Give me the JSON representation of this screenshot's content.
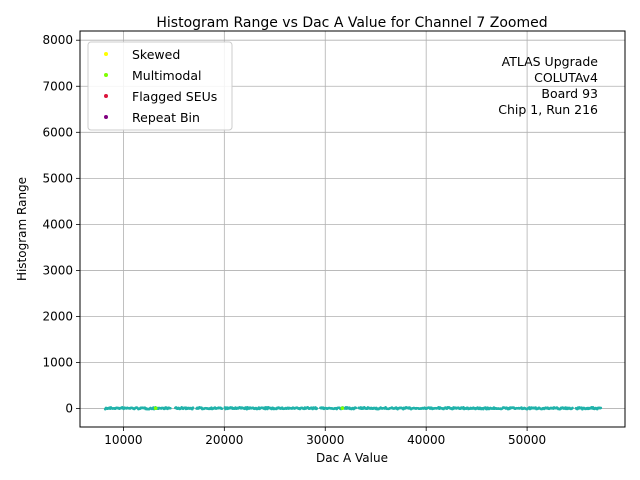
{
  "chart_data": {
    "type": "scatter",
    "title": "Histogram Range vs Dac A Value for Channel 7 Zoomed",
    "xlabel": "Dac A Value",
    "ylabel": "Histogram Range",
    "xlim": [
      5700,
      59700
    ],
    "ylim": [
      -400,
      8200
    ],
    "xticks": [
      10000,
      20000,
      30000,
      40000,
      50000
    ],
    "yticks": [
      0,
      1000,
      2000,
      3000,
      4000,
      5000,
      6000,
      7000,
      8000
    ],
    "grid": true,
    "legend_position": "upper-left",
    "annotation_lines": [
      "ATLAS Upgrade",
      "COLUTAv4",
      "Board 93",
      "Chip 1, Run 216"
    ],
    "series": [
      {
        "name": "Skewed",
        "color": "#ffff00",
        "points": []
      },
      {
        "name": "Multimodal",
        "color": "#7fff00",
        "points": [
          [
            13200,
            8
          ],
          [
            31700,
            8
          ]
        ]
      },
      {
        "name": "Flagged SEUs",
        "color": "#dc143c",
        "points": []
      },
      {
        "name": "Repeat Bin",
        "color": "#800080",
        "points": []
      }
    ],
    "background_data": {
      "color": "#20b2aa",
      "x_range": [
        8200,
        57300
      ],
      "y_value_range": [
        2,
        12
      ],
      "gaps": [
        [
          14700,
          15100
        ],
        [
          16900,
          17200
        ],
        [
          19800,
          20000
        ],
        [
          29200,
          29500
        ],
        [
          33100,
          33300
        ],
        [
          54500,
          54800
        ]
      ]
    }
  }
}
